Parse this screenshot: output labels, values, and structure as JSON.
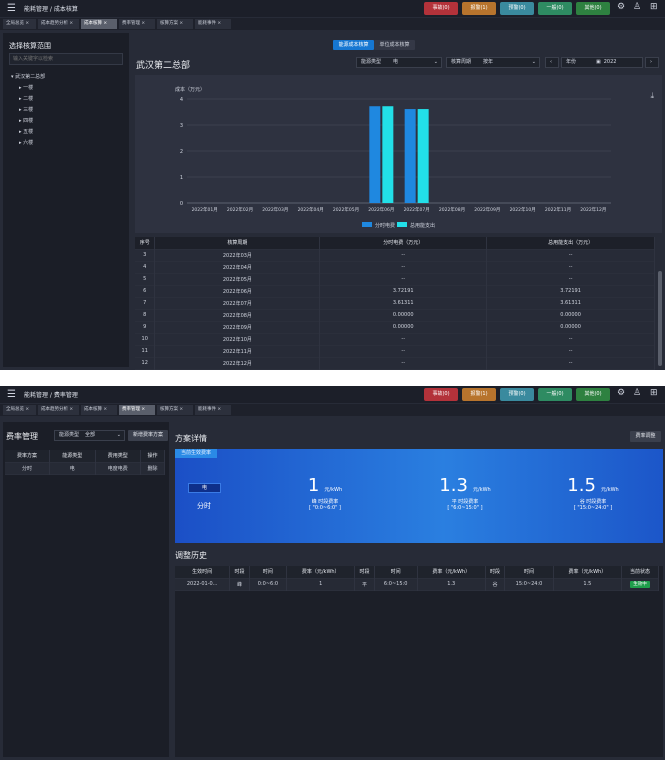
{
  "header": {
    "menu_icon": "menu-icon",
    "alarms": [
      {
        "label": "事故(0)",
        "color": "#b3323a"
      },
      {
        "label": "报警(1)",
        "color": "#b7742d"
      },
      {
        "label": "预警(0)",
        "color": "#3a8a9e"
      },
      {
        "label": "一般(0)",
        "color": "#2e8b62"
      },
      {
        "label": "其他(0)",
        "color": "#2e8140"
      }
    ],
    "icons": [
      "gear-icon",
      "user-icon",
      "apps-icon"
    ]
  },
  "screen1": {
    "breadcrumb": "能耗管理 / 成本核算",
    "tabs": [
      {
        "label": "全局总览 ×",
        "active": false
      },
      {
        "label": "成本趋势分析 ×",
        "active": false
      },
      {
        "label": "成本核算 ×",
        "active": true
      },
      {
        "label": "费率管理 ×",
        "active": false
      },
      {
        "label": "核算方案 ×",
        "active": false
      },
      {
        "label": "能耗事件 ×",
        "active": false
      }
    ],
    "left": {
      "title": "选择核算范围",
      "search_placeholder": "输入关键字以检索",
      "tree_root": "武汉第二总部",
      "tree_items": [
        "一楼",
        "二楼",
        "三楼",
        "四楼",
        "五楼",
        "六楼"
      ]
    },
    "toggle": {
      "active": "能源成本核算",
      "inactive": "单位成本核算"
    },
    "main_title": "武汉第二总部",
    "filters": {
      "energy_type_label": "能源类型",
      "energy_type_value": "电",
      "period_label": "核算周期",
      "period_value": "按年",
      "year_label": "年份",
      "year_value": "2022"
    },
    "download_icon": "download-icon",
    "chart_data": {
      "type": "bar",
      "ylabel": "成本（万元）",
      "ylim": [
        0,
        4
      ],
      "yticks": [
        "0",
        "1",
        "2",
        "3",
        "4"
      ],
      "categories": [
        "2022年01月",
        "2022年02月",
        "2022年03月",
        "2022年04月",
        "2022年05月",
        "2022年06月",
        "2022年07月",
        "2022年08月",
        "2022年09月",
        "2022年10月",
        "2022年11月",
        "2022年12月"
      ],
      "series": [
        {
          "name": "分时电费",
          "color": "#1f88e0",
          "values": [
            null,
            null,
            null,
            null,
            null,
            3.72191,
            3.61311,
            0,
            0,
            null,
            null,
            null
          ]
        },
        {
          "name": "总用能支出",
          "color": "#22dfe8",
          "values": [
            null,
            null,
            null,
            null,
            null,
            3.72191,
            3.61311,
            0,
            0,
            null,
            null,
            null
          ]
        }
      ],
      "legend": "bottom"
    },
    "table": {
      "headers": [
        "序号",
        "核算周期",
        "分时电费（万元）",
        "总用能支出（万元）"
      ],
      "rows": [
        [
          "3",
          "2022年03月",
          "--",
          "--"
        ],
        [
          "4",
          "2022年04月",
          "--",
          "--"
        ],
        [
          "5",
          "2022年05月",
          "--",
          "--"
        ],
        [
          "6",
          "2022年06月",
          "3.72191",
          "3.72191"
        ],
        [
          "7",
          "2022年07月",
          "3.61311",
          "3.61311"
        ],
        [
          "8",
          "2022年08月",
          "0.00000",
          "0.00000"
        ],
        [
          "9",
          "2022年09月",
          "0.00000",
          "0.00000"
        ],
        [
          "10",
          "2022年10月",
          "--",
          "--"
        ],
        [
          "11",
          "2022年11月",
          "--",
          "--"
        ],
        [
          "12",
          "2022年12月",
          "--",
          "--"
        ]
      ]
    }
  },
  "screen2": {
    "breadcrumb": "能耗管理 / 费率管理",
    "tabs": [
      {
        "label": "全局总览 ×",
        "active": false
      },
      {
        "label": "成本趋势分析 ×",
        "active": false
      },
      {
        "label": "成本核算 ×",
        "active": false
      },
      {
        "label": "费率管理 ×",
        "active": true
      },
      {
        "label": "核算方案 ×",
        "active": false
      },
      {
        "label": "能耗事件 ×",
        "active": false
      }
    ],
    "left": {
      "title": "费率管理",
      "energy_type_label": "能源类型",
      "energy_type_value": "全部",
      "new_button": "新增费率方案",
      "headers": [
        "费率方案",
        "能源类型",
        "费用类型",
        "操作"
      ],
      "rows": [
        [
          "分时",
          "电",
          "电度电费",
          "删除"
        ]
      ]
    },
    "detail_title": "方案详情",
    "adjust_button": "费率调整",
    "card": {
      "tag": "当前生效费率",
      "energy": "电",
      "plan": "分时",
      "rates": [
        {
          "value": "1",
          "unit": "元/kWh",
          "name": "峰 时段费率",
          "range": "[ \"0:0~6:0\" ]"
        },
        {
          "value": "1.3",
          "unit": "元/kWh",
          "name": "平 时段费率",
          "range": "[ \"6:0~15:0\" ]"
        },
        {
          "value": "1.5",
          "unit": "元/kWh",
          "name": "谷 时段费率",
          "range": "[ \"15:0~24:0\" ]"
        }
      ]
    },
    "history_title": "调整历史",
    "history": {
      "headers": [
        "生效时间",
        "时段",
        "时间",
        "费率（元/kWh）",
        "时段",
        "时间",
        "费率（元/kWh）",
        "时段",
        "时间",
        "费率（元/kWh）",
        "当前状态"
      ],
      "rows": [
        [
          "2022-01-0...",
          "峰",
          "0:0~6:0",
          "1",
          "平",
          "6:0~15:0",
          "1.3",
          "谷",
          "15:0~24:0",
          "1.5",
          "生效中"
        ]
      ]
    }
  }
}
